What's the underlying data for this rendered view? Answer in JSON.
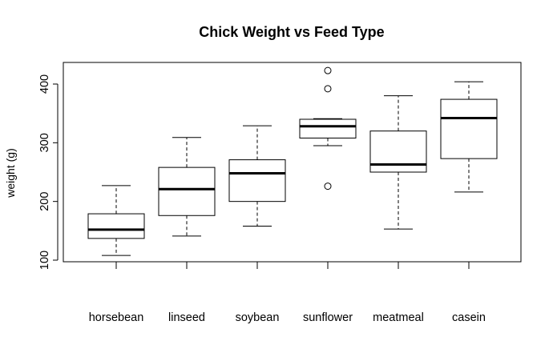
{
  "chart_data": {
    "type": "boxplot",
    "title": "Chick Weight vs Feed Type",
    "xlabel": "",
    "ylabel": "weight (g)",
    "ylim": [
      100,
      420
    ],
    "yticks": [
      100,
      200,
      300,
      400
    ],
    "ytick_labels": [
      "100",
      "200",
      "300",
      "400"
    ],
    "grid": false,
    "categories": [
      "horsebean",
      "linseed",
      "soybean",
      "sunflower",
      "meatmeal",
      "casein"
    ],
    "boxes": [
      {
        "min": 108,
        "q1": 137,
        "median": 152,
        "q3": 179,
        "max": 227,
        "outliers": []
      },
      {
        "min": 141,
        "q1": 176,
        "median": 221,
        "q3": 258,
        "max": 309,
        "outliers": []
      },
      {
        "min": 158,
        "q1": 200,
        "median": 248,
        "q3": 271,
        "max": 329,
        "outliers": []
      },
      {
        "min": 295,
        "q1": 308,
        "median": 328,
        "q3": 340,
        "max": 341,
        "outliers": [
          226,
          392,
          423
        ]
      },
      {
        "min": 153,
        "q1": 250,
        "median": 263,
        "q3": 320,
        "max": 380,
        "outliers": []
      },
      {
        "min": 216,
        "q1": 273,
        "median": 342,
        "q3": 374,
        "max": 404,
        "outliers": []
      }
    ]
  }
}
